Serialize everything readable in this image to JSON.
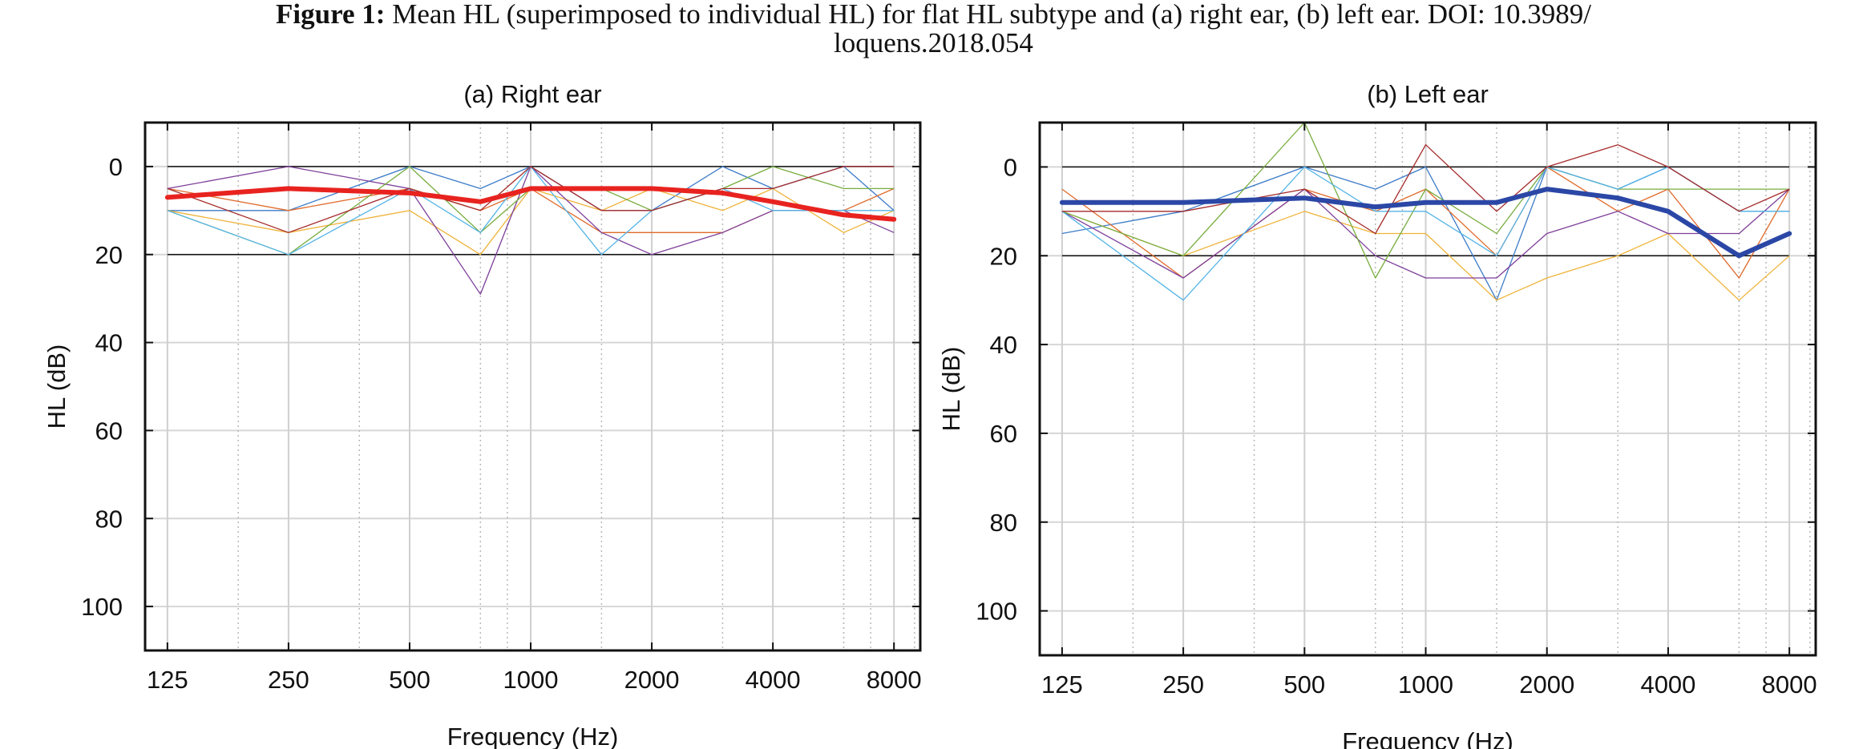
{
  "caption": {
    "label": "Figure 1:",
    "line1": "Mean HL (superimposed to individual HL) for flat HL subtype and (a) right ear, (b) left ear. DOI: 10.3989/",
    "line2": "loquens.2018.054"
  },
  "colors": {
    "mean_right": "#e8231f",
    "mean_left": "#2b47a6",
    "individual": [
      "#3c7bc8",
      "#e06a2a",
      "#efb33a",
      "#7e3f9a",
      "#77ac3e",
      "#55b4e6",
      "#a52a2a"
    ]
  },
  "chart_data": [
    {
      "type": "line",
      "title": "(a) Right ear",
      "xlabel": "Frequency (Hz)",
      "ylabel": "HL (dB)",
      "x_scale": "log2",
      "xlim": [
        110,
        9300
      ],
      "ylim": [
        -10,
        110
      ],
      "y_inverted": true,
      "x_ticks": [
        125,
        250,
        500,
        1000,
        2000,
        4000,
        8000
      ],
      "x_tick_labels": [
        "125",
        "250",
        "500",
        "1000",
        "2000",
        "4000",
        "8000"
      ],
      "y_ticks": [
        0,
        20,
        40,
        60,
        80,
        100
      ],
      "y_tick_labels": [
        "0",
        "20",
        "40",
        "60",
        "80",
        "100"
      ],
      "reference_lines": [
        0,
        20
      ],
      "grid": true,
      "x": [
        125,
        250,
        500,
        750,
        1000,
        1500,
        2000,
        3000,
        4000,
        6000,
        8000
      ],
      "mean": {
        "values": [
          7,
          5,
          6,
          8,
          5,
          5,
          5,
          6,
          8,
          11,
          12
        ]
      },
      "individual_series": [
        {
          "values": [
            10,
            10,
            0,
            5,
            0,
            10,
            10,
            0,
            5,
            0,
            10
          ]
        },
        {
          "values": [
            5,
            10,
            5,
            10,
            5,
            15,
            15,
            15,
            10,
            10,
            5
          ]
        },
        {
          "values": [
            10,
            15,
            10,
            20,
            5,
            10,
            5,
            10,
            5,
            15,
            10
          ]
        },
        {
          "values": [
            5,
            0,
            5,
            29,
            0,
            15,
            20,
            15,
            10,
            10,
            15
          ]
        },
        {
          "values": [
            10,
            20,
            0,
            15,
            5,
            5,
            10,
            5,
            0,
            5,
            5
          ]
        },
        {
          "values": [
            10,
            20,
            5,
            15,
            0,
            20,
            10,
            5,
            10,
            10,
            10
          ]
        },
        {
          "values": [
            5,
            15,
            5,
            10,
            0,
            10,
            10,
            5,
            5,
            0,
            0
          ]
        }
      ]
    },
    {
      "type": "line",
      "title": "(b) Left ear",
      "xlabel": "Frequency (Hz)",
      "ylabel": "HL (dB)",
      "x_scale": "log2",
      "xlim": [
        110,
        9300
      ],
      "ylim": [
        -10,
        110
      ],
      "y_inverted": true,
      "x_ticks": [
        125,
        250,
        500,
        1000,
        2000,
        4000,
        8000
      ],
      "x_tick_labels": [
        "125",
        "250",
        "500",
        "1000",
        "2000",
        "4000",
        "8000"
      ],
      "y_ticks": [
        0,
        20,
        40,
        60,
        80,
        100
      ],
      "y_tick_labels": [
        "0",
        "20",
        "40",
        "60",
        "80",
        "100"
      ],
      "reference_lines": [
        0,
        20
      ],
      "grid": true,
      "x": [
        125,
        250,
        500,
        750,
        1000,
        1500,
        2000,
        3000,
        4000,
        6000,
        8000
      ],
      "mean": {
        "values": [
          8,
          8,
          7,
          9,
          8,
          8,
          5,
          7,
          10,
          20,
          15
        ]
      },
      "individual_series": [
        {
          "values": [
            15,
            10,
            0,
            5,
            0,
            30,
            0,
            5,
            0,
            10,
            10
          ]
        },
        {
          "values": [
            5,
            25,
            5,
            10,
            5,
            20,
            0,
            10,
            5,
            25,
            5
          ]
        },
        {
          "values": [
            10,
            20,
            10,
            15,
            15,
            30,
            25,
            20,
            15,
            30,
            20
          ]
        },
        {
          "values": [
            10,
            25,
            5,
            20,
            25,
            25,
            15,
            10,
            15,
            15,
            5
          ]
        },
        {
          "values": [
            10,
            20,
            -10,
            25,
            5,
            15,
            0,
            5,
            5,
            5,
            5
          ]
        },
        {
          "values": [
            10,
            30,
            0,
            10,
            10,
            20,
            0,
            5,
            0,
            10,
            10
          ]
        },
        {
          "values": [
            10,
            10,
            5,
            15,
            -5,
            10,
            0,
            -5,
            0,
            10,
            5
          ]
        }
      ]
    }
  ]
}
